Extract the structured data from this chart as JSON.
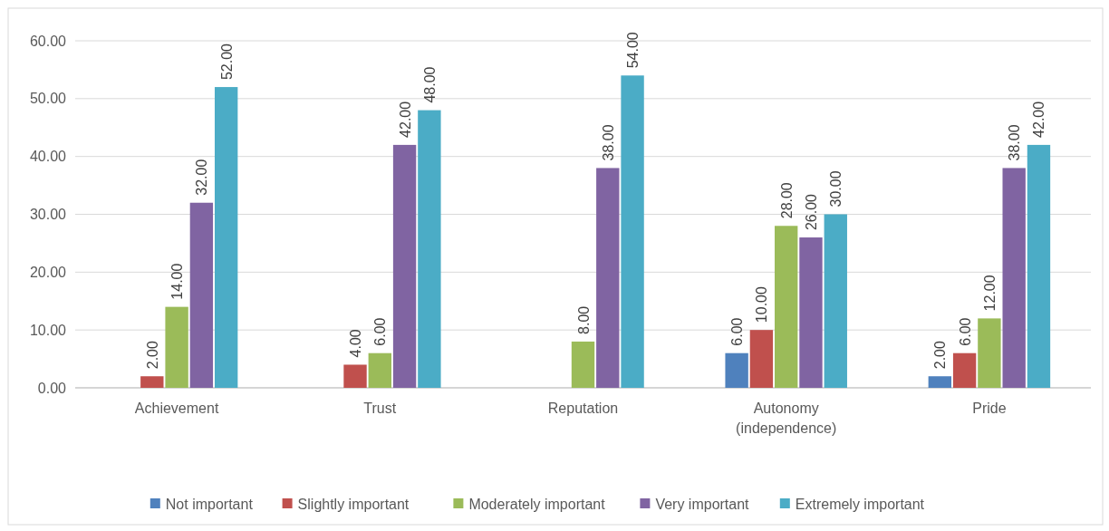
{
  "chart_data": {
    "type": "bar",
    "categories": [
      "Achievement",
      "Trust",
      "Reputation",
      "Autonomy (independence)",
      "Pride"
    ],
    "series": [
      {
        "name": "Not important",
        "color": "#4f81bd",
        "values": [
          0,
          0,
          0,
          6,
          2
        ],
        "value_labels": [
          null,
          null,
          null,
          "6.00",
          "2.00"
        ]
      },
      {
        "name": "Slightly important",
        "color": "#c0504d",
        "values": [
          2,
          4,
          0,
          10,
          6
        ],
        "value_labels": [
          "2.00",
          "4.00",
          null,
          "10.00",
          "6.00"
        ]
      },
      {
        "name": "Moderately important",
        "color": "#9bbb59",
        "values": [
          14,
          6,
          8,
          28,
          12
        ],
        "value_labels": [
          "14.00",
          "6.00",
          "8.00",
          "28.00",
          "12.00"
        ]
      },
      {
        "name": "Very important",
        "color": "#8064a2",
        "values": [
          32,
          42,
          38,
          26,
          38
        ],
        "value_labels": [
          "32.00",
          "42.00",
          "38.00",
          "26.00",
          "38.00"
        ]
      },
      {
        "name": "Extremely important",
        "color": "#4bacc6",
        "values": [
          52,
          48,
          54,
          30,
          42
        ],
        "value_labels": [
          "52.00",
          "48.00",
          "54.00",
          "30.00",
          "42.00"
        ]
      }
    ],
    "ylim": [
      0,
      60
    ],
    "yticks": [
      {
        "value": 0,
        "label": "0.00"
      },
      {
        "value": 10,
        "label": "10.00"
      },
      {
        "value": 20,
        "label": "20.00"
      },
      {
        "value": 30,
        "label": "30.00"
      },
      {
        "value": 40,
        "label": "40.00"
      },
      {
        "value": 50,
        "label": "50.00"
      },
      {
        "value": 60,
        "label": "60.00"
      }
    ],
    "grid": "y",
    "legend": "bottom"
  }
}
